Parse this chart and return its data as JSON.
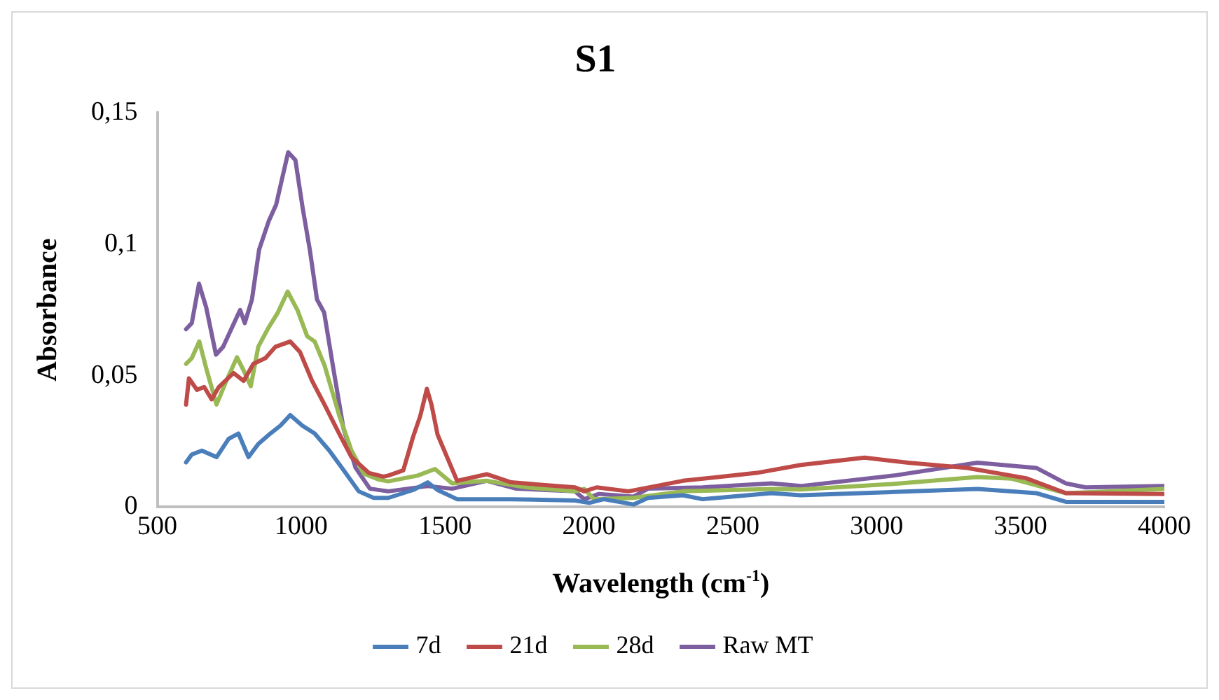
{
  "chart_data": {
    "type": "line",
    "title": "S1",
    "xlabel": "Wavelength (cm$^{-1}$)",
    "ylabel": "Absorbance",
    "xlim": [
      500,
      4000
    ],
    "xticks": [
      500,
      1000,
      1500,
      2000,
      2500,
      3000,
      3500,
      4000
    ],
    "ylim": [
      0,
      0.15
    ],
    "yticks": [
      {
        "value": 0,
        "label": "0"
      },
      {
        "value": 0.05,
        "label": "0,05"
      },
      {
        "value": 0.1,
        "label": "0,1"
      },
      {
        "value": 0.15,
        "label": "0,15"
      }
    ],
    "grid": false,
    "legend": "bottom",
    "marker": "none",
    "line_style": "solid",
    "series": [
      {
        "name": "7d",
        "color": "#4a7ebb",
        "x": [
          600,
          620,
          655,
          706,
          748,
          782,
          817,
          851,
          893,
          928,
          962,
          1004,
          1047,
          1098,
          1149,
          1200,
          1252,
          1303,
          1389,
          1440,
          1474,
          1542,
          1730,
          1952,
          2001,
          2052,
          2155,
          2206,
          2327,
          2395,
          2634,
          2736,
          3350,
          3555,
          3658,
          3999
        ],
        "values": [
          0.017,
          0.02,
          0.0215,
          0.019,
          0.026,
          0.028,
          0.019,
          0.024,
          0.028,
          0.031,
          0.035,
          0.031,
          0.028,
          0.0215,
          0.0138,
          0.006,
          0.0035,
          0.0035,
          0.0065,
          0.0094,
          0.0065,
          0.003,
          0.003,
          0.0025,
          0.0016,
          0.003,
          0.001,
          0.0035,
          0.0045,
          0.003,
          0.0053,
          0.0045,
          0.0069,
          0.0053,
          0.002,
          0.002
        ]
      },
      {
        "name": "21d",
        "color": "#be4b48",
        "x": [
          600,
          610,
          638,
          663,
          689,
          714,
          765,
          800,
          834,
          876,
          911,
          962,
          996,
          1038,
          1081,
          1132,
          1175,
          1235,
          1286,
          1303,
          1355,
          1389,
          1414,
          1437,
          1453,
          1474,
          1508,
          1542,
          1645,
          1730,
          1952,
          1984,
          2027,
          2138,
          2327,
          2583,
          2736,
          2958,
          3110,
          3315,
          3519,
          3658,
          3999
        ],
        "values": [
          0.039,
          0.049,
          0.0446,
          0.0457,
          0.041,
          0.0457,
          0.051,
          0.048,
          0.0545,
          0.0567,
          0.061,
          0.063,
          0.059,
          0.048,
          0.039,
          0.028,
          0.019,
          0.013,
          0.0116,
          0.012,
          0.014,
          0.0267,
          0.0347,
          0.045,
          0.039,
          0.0276,
          0.0188,
          0.01,
          0.0125,
          0.0094,
          0.0075,
          0.006,
          0.0075,
          0.006,
          0.01,
          0.013,
          0.016,
          0.0188,
          0.0169,
          0.0149,
          0.011,
          0.0053,
          0.005
        ]
      },
      {
        "name": "28d",
        "color": "#98b954",
        "x": [
          600,
          620,
          646,
          672,
          706,
          740,
          777,
          800,
          825,
          851,
          885,
          919,
          953,
          987,
          1021,
          1047,
          1081,
          1132,
          1175,
          1218,
          1269,
          1303,
          1405,
          1465,
          1525,
          1645,
          1782,
          1952,
          1984,
          2018,
          2155,
          2327,
          2634,
          2736,
          3060,
          3350,
          3470,
          3658,
          3999
        ],
        "values": [
          0.0545,
          0.0567,
          0.063,
          0.052,
          0.039,
          0.048,
          0.057,
          0.052,
          0.046,
          0.061,
          0.068,
          0.074,
          0.082,
          0.075,
          0.065,
          0.063,
          0.054,
          0.035,
          0.0215,
          0.0127,
          0.0105,
          0.0098,
          0.012,
          0.0145,
          0.009,
          0.01,
          0.0075,
          0.006,
          0.0069,
          0.003,
          0.0035,
          0.006,
          0.0069,
          0.0067,
          0.0088,
          0.0114,
          0.0108,
          0.0053,
          0.0069
        ]
      },
      {
        "name": "Raw MT",
        "color": "#7d5fa0",
        "x": [
          600,
          620,
          645,
          670,
          704,
          729,
          771,
          788,
          804,
          829,
          854,
          888,
          913,
          938,
          955,
          980,
          1005,
          1030,
          1055,
          1080,
          1113,
          1147,
          1189,
          1239,
          1303,
          1440,
          1525,
          1645,
          1748,
          1952,
          1984,
          2035,
          2155,
          2206,
          2395,
          2634,
          2736,
          3060,
          3350,
          3555,
          3658,
          3726,
          3999
        ],
        "values": [
          0.0677,
          0.07,
          0.085,
          0.076,
          0.058,
          0.061,
          0.071,
          0.075,
          0.07,
          0.079,
          0.098,
          0.109,
          0.115,
          0.127,
          0.135,
          0.132,
          0.114,
          0.098,
          0.079,
          0.074,
          0.052,
          0.03,
          0.015,
          0.007,
          0.006,
          0.008,
          0.007,
          0.01,
          0.007,
          0.006,
          0.003,
          0.005,
          0.004,
          0.007,
          0.0075,
          0.009,
          0.008,
          0.012,
          0.0169,
          0.0149,
          0.009,
          0.0075,
          0.008
        ]
      }
    ]
  }
}
